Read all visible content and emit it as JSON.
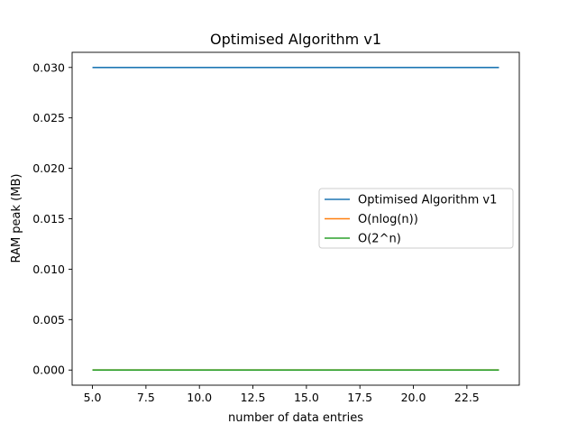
{
  "chart_data": {
    "type": "line",
    "title": "Optimised Algorithm v1",
    "xlabel": "number of data entries",
    "ylabel": "RAM peak (MB)",
    "xlim": [
      4.05,
      24.95
    ],
    "ylim": [
      -0.0015,
      0.0315
    ],
    "xticks": [
      5.0,
      7.5,
      10.0,
      12.5,
      15.0,
      17.5,
      20.0,
      22.5
    ],
    "xtick_labels": [
      "5.0",
      "7.5",
      "10.0",
      "12.5",
      "15.0",
      "17.5",
      "20.0",
      "22.5"
    ],
    "yticks": [
      0.0,
      0.005,
      0.01,
      0.015,
      0.02,
      0.025,
      0.03
    ],
    "ytick_labels": [
      "0.000",
      "0.005",
      "0.010",
      "0.015",
      "0.020",
      "0.025",
      "0.030"
    ],
    "grid": false,
    "legend_position": "center-right",
    "series": [
      {
        "name": "Optimised Algorithm v1",
        "color": "#1f77b4",
        "x": [
          5,
          24
        ],
        "y": [
          0.03,
          0.03
        ]
      },
      {
        "name": "O(nlog(n))",
        "color": "#ff7f0e",
        "x": [
          5,
          24
        ],
        "y": [
          0.0,
          0.0
        ]
      },
      {
        "name": "O(2^n)",
        "color": "#2ca02c",
        "x": [
          5,
          24
        ],
        "y": [
          0.0,
          0.0
        ]
      }
    ]
  }
}
